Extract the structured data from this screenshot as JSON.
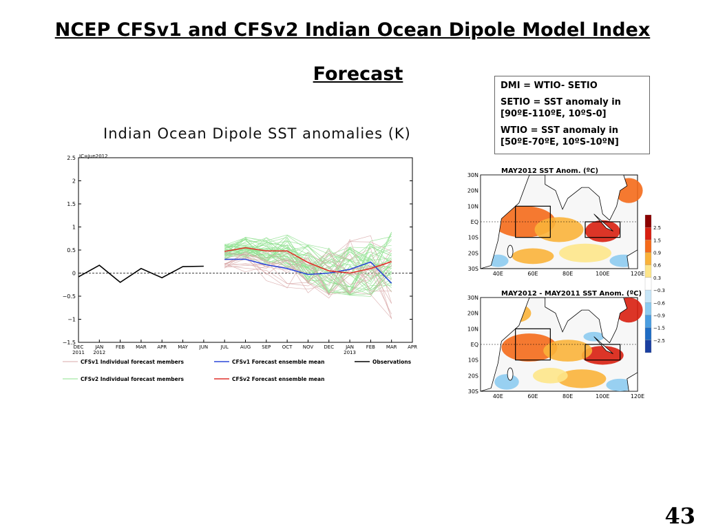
{
  "slide": {
    "title_line1": "NCEP CFSv1 and CFSv2 Indian Ocean Dipole Model Index",
    "title_line2": "Forecast",
    "page_number": "43"
  },
  "definitions": {
    "line1": "DMI = WTIO- SETIO",
    "line2": "SETIO = SST anomaly in [90ºE-110ºE, 10ºS-0]",
    "line3": "WTIO = SST anomaly in [50ºE-70ºE, 10ºS-10ºN]"
  },
  "chart_data": [
    {
      "type": "line",
      "title": "Indian Ocean Dipole SST anomalies (K)",
      "annotation": "IC=Jun2012",
      "x_ticks": [
        "DEC",
        "JAN",
        "FEB",
        "MAR",
        "APR",
        "MAY",
        "JUN",
        "JUL",
        "AUG",
        "SEP",
        "OCT",
        "NOV",
        "DEC",
        "JAN",
        "FEB",
        "MAR",
        "APR"
      ],
      "x_year_labels": [
        {
          "index": 0,
          "text": "2011"
        },
        {
          "index": 1,
          "text": "2012"
        },
        {
          "index": 13,
          "text": "2013"
        }
      ],
      "ylim": [
        -1.5,
        2.5
      ],
      "y_ticks": [
        "2.5",
        "2",
        "1.5",
        "1",
        "0.5",
        "0",
        "−0.5",
        "−1",
        "−1.5"
      ],
      "y_tick_values": [
        2.5,
        2,
        1.5,
        1,
        0.5,
        0,
        -0.5,
        -1,
        -1.5
      ],
      "series": [
        {
          "name": "Observations",
          "color": "#000000",
          "x": [
            0,
            1,
            2,
            3,
            4,
            5,
            6
          ],
          "values": [
            -0.08,
            0.17,
            -0.2,
            0.1,
            -0.1,
            0.14,
            0.15
          ]
        },
        {
          "name": "CFSv1 Forecast ensemble mean",
          "color": "#2a46d8",
          "x": [
            7,
            8,
            9,
            10,
            11,
            12,
            13,
            14,
            15
          ],
          "values": [
            0.3,
            0.3,
            0.18,
            0.1,
            -0.03,
            0.0,
            0.08,
            0.24,
            -0.22
          ]
        },
        {
          "name": "CFSv2 Forecast ensemble mean",
          "color": "#e0302a",
          "x": [
            7,
            8,
            9,
            10,
            11,
            12,
            13,
            14,
            15
          ],
          "values": [
            0.47,
            0.55,
            0.48,
            0.48,
            0.23,
            0.05,
            0.0,
            0.1,
            0.25
          ]
        }
      ],
      "member_groups": [
        {
          "name": "CFSv1 Individual forecast members",
          "color": "#d8a8a8",
          "count": 15,
          "x": [
            7,
            8,
            9,
            10,
            11,
            12,
            13,
            14,
            15
          ],
          "mean": [
            0.3,
            0.3,
            0.18,
            0.1,
            -0.03,
            0.0,
            0.08,
            0.24,
            -0.22
          ],
          "spread": 0.8
        },
        {
          "name": "CFSv2 Individual forecast members",
          "color": "#8ee08e",
          "count": 40,
          "x": [
            7,
            8,
            9,
            10,
            11,
            12,
            13,
            14,
            15
          ],
          "mean": [
            0.47,
            0.55,
            0.48,
            0.48,
            0.23,
            0.05,
            0.0,
            0.1,
            0.25
          ],
          "spread": 0.7
        }
      ],
      "legend": [
        {
          "label": "CFSv1 Individual forecast members",
          "color": "#d8a8a8"
        },
        {
          "label": "CFSv1 Forecast ensemble mean",
          "color": "#2a46d8"
        },
        {
          "label": "Observations",
          "color": "#000000"
        },
        {
          "label": "CFSv2 Individual forecast members",
          "color": "#8ee08e"
        },
        {
          "label": "CFSv2 Forecast ensemble mean",
          "color": "#e0302a"
        }
      ]
    },
    {
      "type": "heatmap",
      "title": "MAY2012 SST Anom. (ºC)",
      "lat_labels": [
        "30N",
        "20N",
        "10N",
        "EQ",
        "10S",
        "20S",
        "30S"
      ],
      "lon_labels": [
        "40E",
        "60E",
        "80E",
        "100E",
        "120E"
      ],
      "boxes": [
        "WTIO [50E-70E, 10S-10N]",
        "SETIO [90E-110E, 10S-0]"
      ]
    },
    {
      "type": "heatmap",
      "title": "MAY2012 - MAY2011 SST Anom. (ºC)",
      "lat_labels": [
        "30N",
        "20N",
        "10N",
        "EQ",
        "10S",
        "20S",
        "30S"
      ],
      "lon_labels": [
        "40E",
        "60E",
        "80E",
        "100E",
        "120E"
      ],
      "boxes": [
        "WTIO [50E-70E, 10S-10N]",
        "SETIO [90E-110E, 10S-0]"
      ]
    }
  ],
  "colorbar": {
    "labels": [
      "2.5",
      "1.5",
      "0.9",
      "0.6",
      "0.3",
      "−0.3",
      "−0.6",
      "−0.9",
      "−1.5",
      "−2.5"
    ],
    "colors": [
      "#8b0000",
      "#d81f10",
      "#f46a1a",
      "#f9b23a",
      "#fde58a",
      "#ffffff",
      "#c8e6f8",
      "#8dcbf0",
      "#4a9de0",
      "#1f6cc4",
      "#1a3fa0"
    ]
  }
}
